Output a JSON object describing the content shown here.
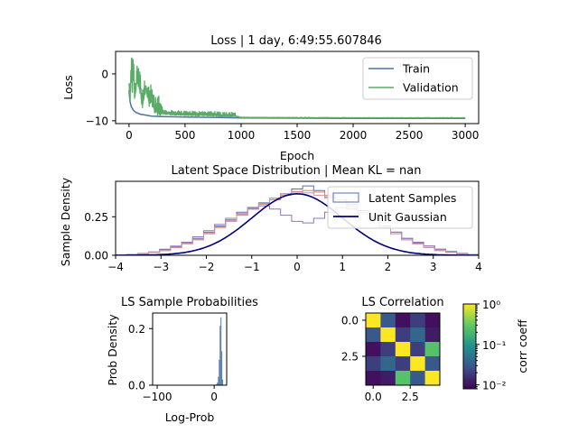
{
  "chart_data": [
    {
      "type": "line",
      "title": "Loss | 1 day, 6:49:55.607846",
      "xlabel": "Epoch",
      "ylabel": "Loss",
      "xlim": [
        -120,
        3120
      ],
      "ylim": [
        -10.6,
        4.8
      ],
      "xticks": [
        0,
        500,
        1000,
        1500,
        2000,
        2500,
        3000
      ],
      "yticks": [
        -10,
        0
      ],
      "legend": "top-right",
      "series": [
        {
          "name": "Train",
          "color": "#4f73a8",
          "x": [
            0,
            5,
            10,
            20,
            40,
            60,
            100,
            150,
            200,
            300,
            500,
            800,
            1000,
            1500,
            2000,
            2500,
            3000
          ],
          "y": [
            -3.5,
            -5,
            -6,
            -7,
            -7.8,
            -8.2,
            -8.6,
            -8.8,
            -9.0,
            -9.1,
            -9.2,
            -9.3,
            -9.4,
            -9.45,
            -9.5,
            -9.5,
            -9.5
          ]
        },
        {
          "name": "Validation",
          "color": "#5aab68",
          "x": [
            0,
            10,
            20,
            25,
            30,
            40,
            50,
            70,
            100,
            120,
            150,
            180,
            200,
            230,
            260,
            300,
            400,
            500,
            600,
            700,
            800,
            900,
            950,
            1000,
            1500,
            2000,
            2500,
            3000
          ],
          "y": [
            -2,
            -6,
            0,
            4.2,
            -3,
            1.5,
            -5,
            -1,
            -3,
            -7,
            -2.5,
            -6,
            -5.5,
            -7.5,
            -8,
            -8.5,
            -8.6,
            -8.7,
            -8.8,
            -8.8,
            -8.9,
            -9.0,
            -9.0,
            -9.3,
            -9.35,
            -9.4,
            -9.4,
            -9.4
          ]
        }
      ]
    },
    {
      "type": "line",
      "title": "Latent Space Distribution | Mean KL = nan",
      "xlabel": "",
      "ylabel": "Sample Density",
      "xlim": [
        -4,
        4
      ],
      "ylim": [
        0,
        0.48
      ],
      "xticks": [
        -4,
        -3,
        -2,
        -1,
        0,
        1,
        2,
        3,
        4
      ],
      "yticks": [
        0.0,
        0.25
      ],
      "ytick_labels": [
        "0.00",
        "0.25"
      ],
      "legend": "top-right",
      "series": [
        {
          "name": "Latent Samples",
          "color": "#4f73a8"
        },
        {
          "name": "Unit Gaussian",
          "color": "#00007f"
        }
      ],
      "histograms": [
        {
          "color": "#4f73a8",
          "values": [
            0.002,
            0.005,
            0.01,
            0.02,
            0.035,
            0.055,
            0.08,
            0.11,
            0.15,
            0.19,
            0.23,
            0.28,
            0.31,
            0.34,
            0.37,
            0.4,
            0.43,
            0.45,
            0.42,
            0.38,
            0.36,
            0.33,
            0.29,
            0.24,
            0.19,
            0.15,
            0.11,
            0.08,
            0.06,
            0.04,
            0.025,
            0.012,
            0.005
          ]
        },
        {
          "color": "#e3865a",
          "values": [
            0.001,
            0.004,
            0.009,
            0.018,
            0.03,
            0.05,
            0.075,
            0.1,
            0.14,
            0.18,
            0.22,
            0.26,
            0.3,
            0.33,
            0.36,
            0.39,
            0.41,
            0.42,
            0.41,
            0.39,
            0.36,
            0.32,
            0.28,
            0.23,
            0.18,
            0.14,
            0.1,
            0.075,
            0.05,
            0.03,
            0.018,
            0.009,
            0.004
          ]
        },
        {
          "color": "#8c78b8",
          "values": [
            0.003,
            0.006,
            0.012,
            0.022,
            0.04,
            0.06,
            0.085,
            0.12,
            0.16,
            0.2,
            0.24,
            0.27,
            0.3,
            0.32,
            0.3,
            0.26,
            0.22,
            0.21,
            0.24,
            0.28,
            0.31,
            0.3,
            0.27,
            0.23,
            0.19,
            0.15,
            0.11,
            0.085,
            0.06,
            0.04,
            0.022,
            0.012,
            0.006
          ]
        },
        {
          "color": "#d08fb8",
          "values": [
            0.002,
            0.004,
            0.01,
            0.02,
            0.032,
            0.052,
            0.078,
            0.105,
            0.145,
            0.185,
            0.225,
            0.265,
            0.305,
            0.335,
            0.37,
            0.4,
            0.415,
            0.405,
            0.39,
            0.37,
            0.345,
            0.31,
            0.27,
            0.225,
            0.18,
            0.14,
            0.1,
            0.075,
            0.05,
            0.032,
            0.02,
            0.01,
            0.004
          ]
        }
      ],
      "hist_range": [
        -4,
        4
      ]
    },
    {
      "type": "bar",
      "title": "LS Sample Probabilities",
      "xlabel": "Log-Prob",
      "ylabel": "Prob Density",
      "xlim": [
        -108,
        22
      ],
      "ylim": [
        0,
        0.255
      ],
      "xticks": [
        -100,
        0
      ],
      "yticks": [
        0.0,
        0.2
      ],
      "ytick_labels": [
        "0.0",
        "0.2"
      ],
      "bars": [
        {
          "x": 3,
          "value": 0.002
        },
        {
          "x": 4.5,
          "value": 0.004
        },
        {
          "x": 6,
          "value": 0.01
        },
        {
          "x": 7.5,
          "value": 0.03
        },
        {
          "x": 9,
          "value": 0.09
        },
        {
          "x": 10.5,
          "value": 0.21
        },
        {
          "x": 12,
          "value": 0.24
        },
        {
          "x": 13.5,
          "value": 0.12
        },
        {
          "x": 15,
          "value": 0.02
        }
      ],
      "bar_width": 1.5,
      "color": "#4f73a8"
    },
    {
      "type": "heatmap",
      "title": "LS Correlation",
      "xticks": [
        0.0,
        2.5
      ],
      "xtick_labels": [
        "0.0",
        "2.5"
      ],
      "yticks": [
        0.0,
        2.5
      ],
      "ytick_labels": [
        "0.0",
        "2.5"
      ],
      "colorbar_label": "corr coeff",
      "colorbar_scale": "log",
      "colorbar_range": [
        0.008,
        1
      ],
      "colorbar_ticks": [
        "10⁰",
        "10⁻¹",
        "10⁻²"
      ],
      "matrix": [
        [
          1.0,
          0.03,
          0.01,
          0.02,
          0.01
        ],
        [
          0.03,
          1.0,
          0.02,
          0.04,
          0.012
        ],
        [
          0.01,
          0.02,
          1.0,
          0.02,
          0.25
        ],
        [
          0.02,
          0.04,
          0.02,
          1.0,
          0.03
        ],
        [
          0.01,
          0.012,
          0.25,
          0.03,
          1.0
        ]
      ]
    }
  ]
}
